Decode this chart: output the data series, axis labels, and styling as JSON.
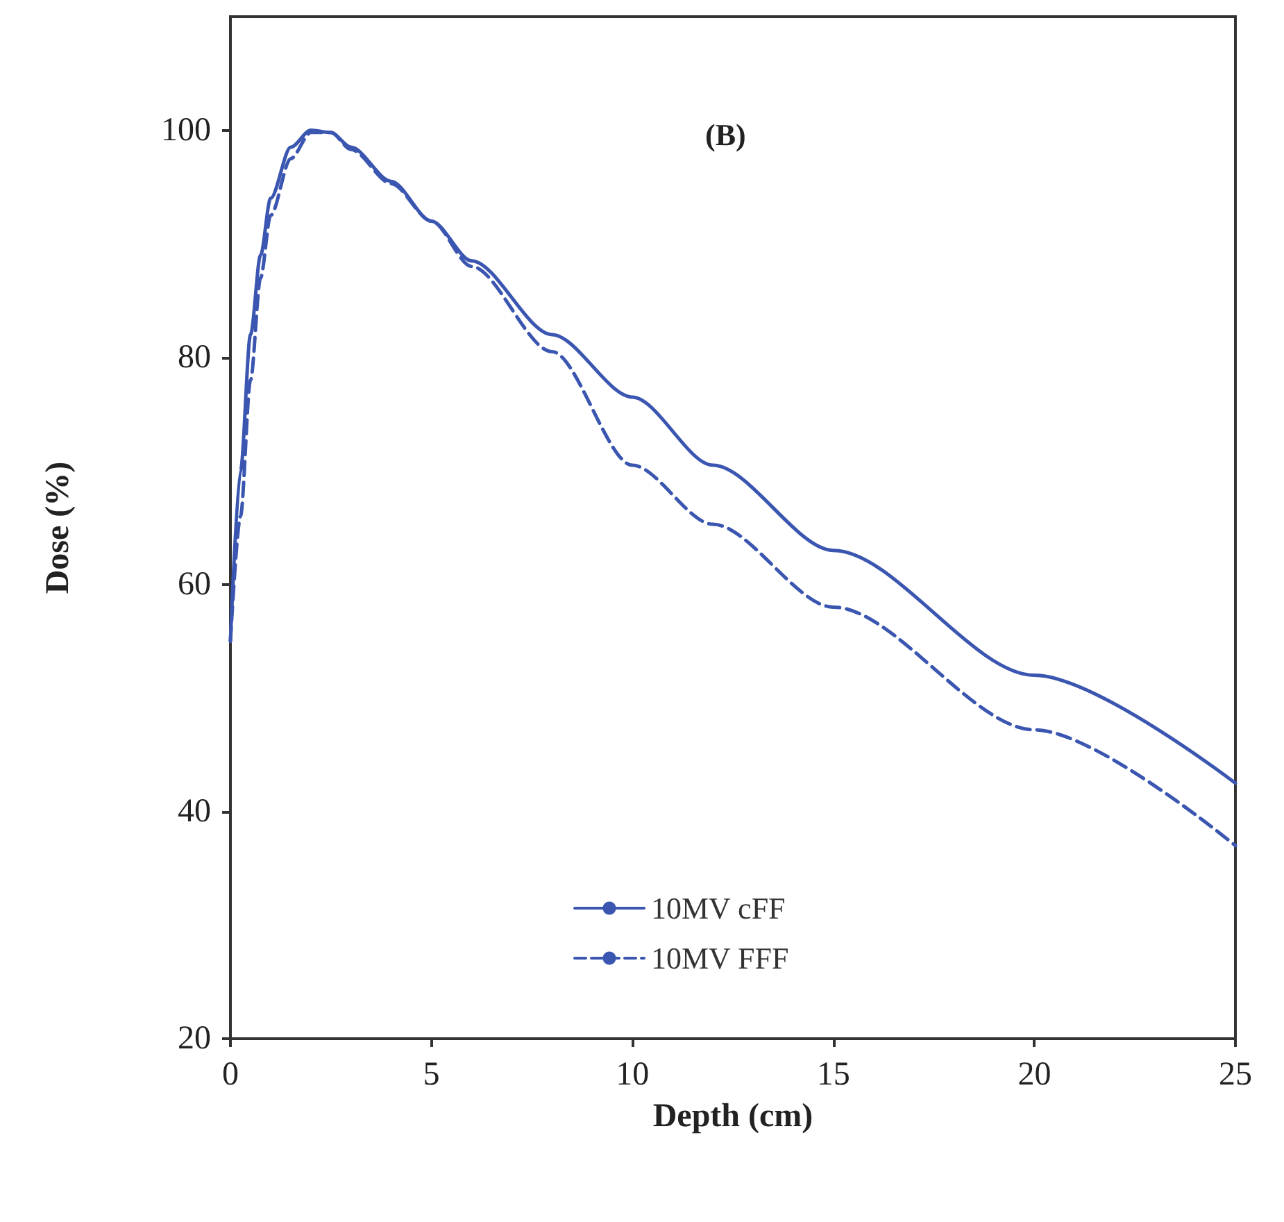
{
  "chart_data": {
    "type": "line",
    "xlabel": "Depth (cm)",
    "ylabel": "Dose (%)",
    "annotations": [
      "(B)"
    ],
    "x": [
      0,
      0.25,
      0.5,
      0.75,
      1,
      1.5,
      2,
      2.5,
      3,
      4,
      5,
      6,
      8,
      10,
      12,
      15,
      20,
      25
    ],
    "series": [
      {
        "name": "10MV cFF",
        "color": "#3b56b0",
        "line_style": "solid",
        "values": [
          55,
          70,
          82,
          89,
          94,
          98.5,
          100,
          99.8,
          98.5,
          95.5,
          92,
          88.5,
          82,
          76.5,
          70.5,
          63,
          52,
          42.5
        ]
      },
      {
        "name": "10MV FFF",
        "color": "#3b56b0",
        "line_style": "dashed",
        "values": [
          55,
          66,
          78,
          87,
          92.5,
          97.5,
          99.8,
          99.8,
          98.3,
          95.3,
          92,
          88,
          80.5,
          70.5,
          65.3,
          58,
          47.2,
          37
        ]
      }
    ],
    "xlim": [
      0,
      25
    ],
    "xticks": [
      0,
      5,
      10,
      15,
      20,
      25
    ],
    "ylim": [
      20,
      110
    ],
    "yticks": [
      20,
      40,
      60,
      80,
      100
    ],
    "grid": false,
    "legend": "bottom"
  }
}
